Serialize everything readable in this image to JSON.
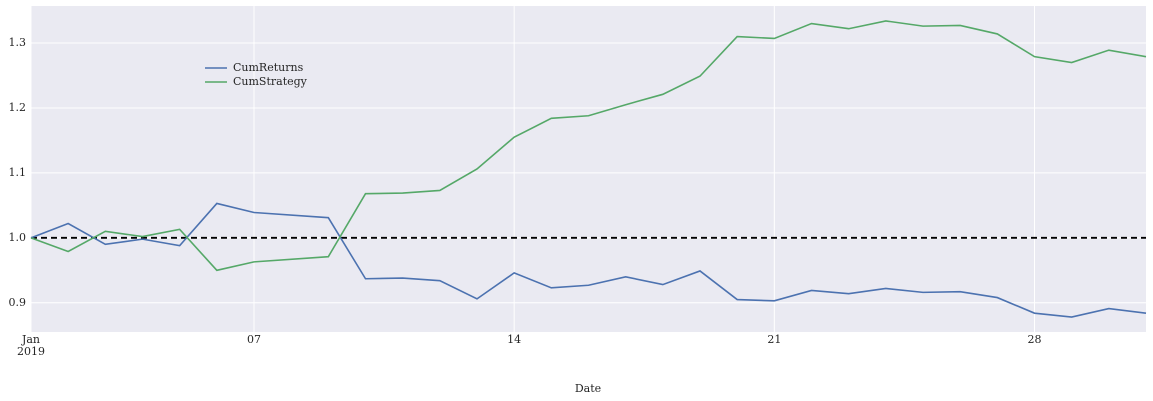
{
  "chart_data": {
    "type": "line",
    "x_label": "Date",
    "x": [
      "2019-01-01",
      "2019-01-02",
      "2019-01-03",
      "2019-01-04",
      "2019-01-05",
      "2019-01-06",
      "2019-01-07",
      "2019-01-09",
      "2019-01-10",
      "2019-01-11",
      "2019-01-12",
      "2019-01-13",
      "2019-01-14",
      "2019-01-15",
      "2019-01-16",
      "2019-01-17",
      "2019-01-18",
      "2019-01-19",
      "2019-01-20",
      "2019-01-21",
      "2019-01-22",
      "2019-01-23",
      "2019-01-24",
      "2019-01-25",
      "2019-01-26",
      "2019-01-27",
      "2019-01-28",
      "2019-01-29",
      "2019-01-30",
      "2019-01-31"
    ],
    "series": [
      {
        "name": "CumReturns",
        "color": "#4c72b0",
        "values": [
          1.0,
          1.022,
          0.99,
          0.998,
          0.988,
          1.053,
          1.039,
          1.031,
          0.937,
          0.938,
          0.934,
          0.906,
          0.946,
          0.923,
          0.927,
          0.94,
          0.928,
          0.949,
          0.905,
          0.903,
          0.919,
          0.914,
          0.922,
          0.916,
          0.917,
          0.908,
          0.884,
          0.878,
          0.891,
          0.884
        ]
      },
      {
        "name": "CumStrategy",
        "color": "#55a868",
        "values": [
          1.0,
          0.979,
          1.01,
          1.002,
          1.013,
          0.95,
          0.963,
          0.971,
          1.068,
          1.069,
          1.073,
          1.106,
          1.155,
          1.184,
          1.188,
          1.205,
          1.221,
          1.249,
          1.31,
          1.307,
          1.33,
          1.322,
          1.334,
          1.326,
          1.327,
          1.314,
          1.279,
          1.27,
          1.289,
          1.279
        ]
      }
    ],
    "hline": {
      "value": 1.0,
      "color": "#000000"
    },
    "xlim": [
      "2019-01-01",
      "2019-01-31"
    ],
    "xticks": [
      {
        "value": "2019-01-01",
        "label": "Jan\n2019"
      },
      {
        "value": "2019-01-07",
        "label": "07"
      },
      {
        "value": "2019-01-14",
        "label": "14"
      },
      {
        "value": "2019-01-21",
        "label": "21"
      },
      {
        "value": "2019-01-28",
        "label": "28"
      }
    ],
    "ylim": [
      0.855,
      1.357
    ],
    "yticks": [
      0.9,
      {
        "value": 1.0,
        "label": "1.0"
      },
      1.1,
      1.2,
      1.3
    ],
    "grid": true,
    "legend": "upper left"
  }
}
